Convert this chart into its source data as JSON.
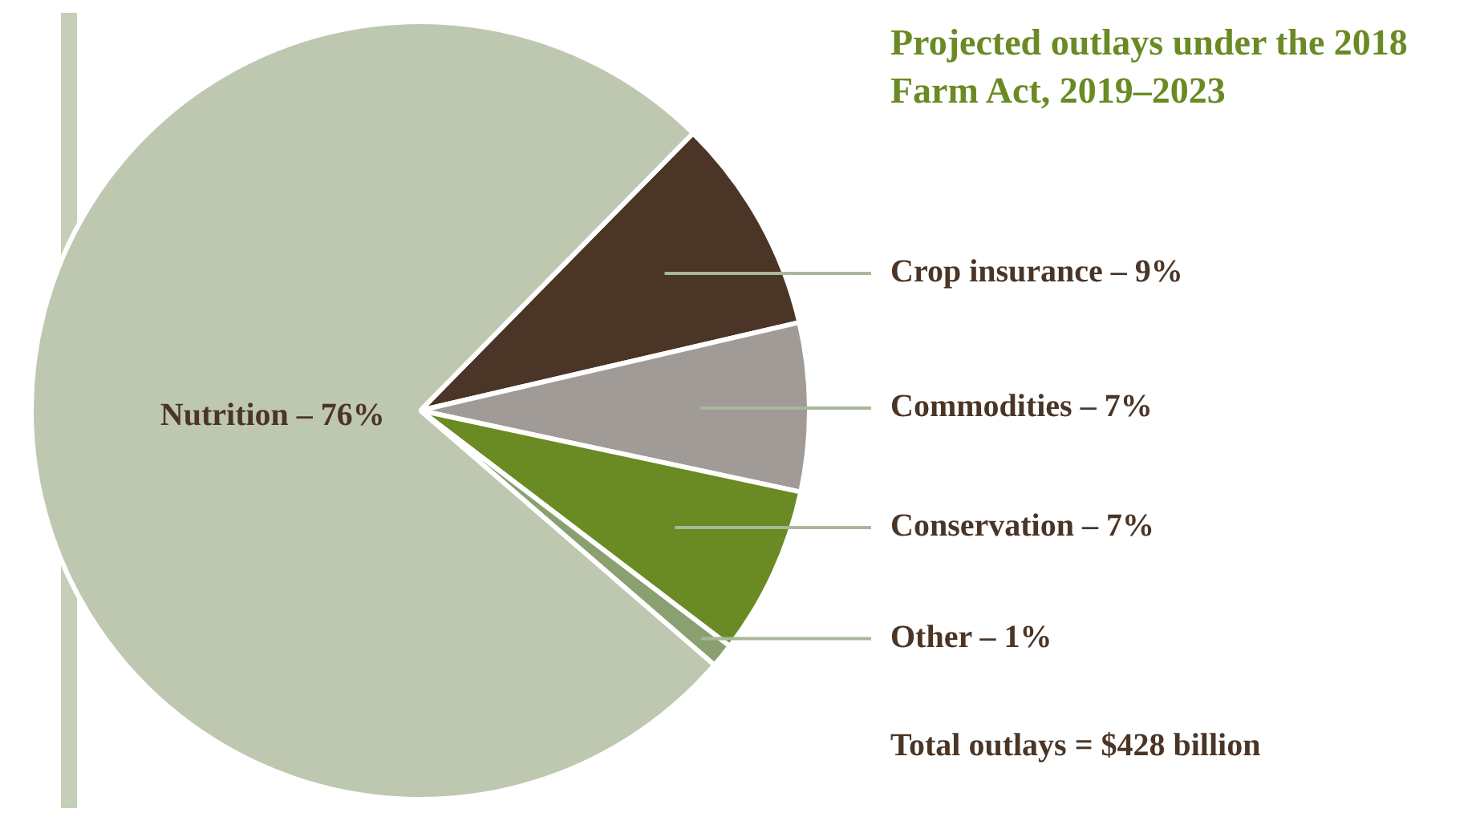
{
  "chart_data": {
    "type": "pie",
    "title": "Projected outlays under the 2018 Farm Act, 2019–2023",
    "categories": [
      "Crop insurance – 9%",
      "Commodities – 7%",
      "Conservation – 7%",
      "Other – 1%",
      "Nutrition – 76%"
    ],
    "values": [
      9,
      7,
      7,
      1,
      76
    ],
    "colors": [
      "#4a3526",
      "#a09b96",
      "#6a8a24",
      "#8aa070",
      "#bec8b0"
    ],
    "annotations": [
      "Total outlays = $428 billion"
    ],
    "legend": false
  }
}
